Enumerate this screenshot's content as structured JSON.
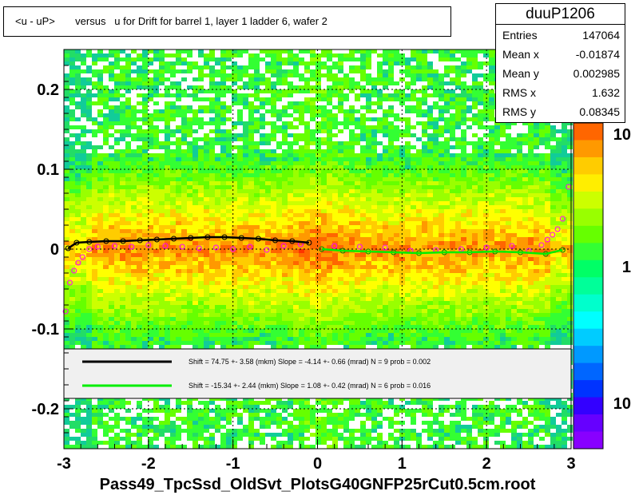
{
  "title": "<u - uP>       versus   u for Drift for barrel 1, layer 1 ladder 6, wafer 2",
  "stats": {
    "name": "duuP1206",
    "rows": [
      {
        "label": "Entries",
        "value": "147064"
      },
      {
        "label": "Mean x",
        "value": "-0.01874"
      },
      {
        "label": "Mean y",
        "value": "0.002985"
      },
      {
        "label": "RMS x",
        "value": "1.632"
      },
      {
        "label": "RMS y",
        "value": "0.08345"
      }
    ]
  },
  "footer": "Pass49_TpcSsd_OldSvt_PlotsG40GNFP25rCut0.5cm.root",
  "legend": [
    {
      "color": "#000000",
      "text": "Shift =    74.75 +- 3.58 (mkm) Slope =    -4.14 +- 0.66 (mrad)  N = 9 prob = 0.002"
    },
    {
      "color": "#00ee00",
      "text": "Shift =   -15.34 +- 2.44 (mkm) Slope =     1.08 +- 0.42 (mrad)  N = 6 prob = 0.016"
    }
  ],
  "chart_data": {
    "type": "heatmap",
    "xlim": [
      -3,
      3
    ],
    "ylim": [
      -0.25,
      0.25
    ],
    "x_ticks": [
      "-3",
      "-2",
      "-1",
      "0",
      "1",
      "2",
      "3"
    ],
    "y_ticks": [
      "-0.2",
      "-0.1",
      "0",
      "0.1",
      "0.2"
    ],
    "colorbar_ticks": [
      "10",
      "1",
      "10"
    ],
    "grid": true,
    "black_fit_points": [
      [
        -2.95,
        0.001
      ],
      [
        -2.85,
        0.008
      ],
      [
        -2.7,
        0.009
      ],
      [
        -2.5,
        0.01
      ],
      [
        -2.3,
        0.01
      ],
      [
        -2.1,
        0.011
      ],
      [
        -1.9,
        0.012
      ],
      [
        -1.7,
        0.013
      ],
      [
        -1.5,
        0.014
      ],
      [
        -1.3,
        0.015
      ],
      [
        -1.1,
        0.015
      ],
      [
        -0.9,
        0.014
      ],
      [
        -0.7,
        0.013
      ],
      [
        -0.5,
        0.011
      ],
      [
        -0.3,
        0.01
      ],
      [
        -0.1,
        0.008
      ]
    ],
    "green_fit_points": [
      [
        0.05,
        0.0
      ],
      [
        0.3,
        -0.002
      ],
      [
        0.6,
        -0.003
      ],
      [
        0.9,
        -0.004
      ],
      [
        1.2,
        -0.005
      ],
      [
        1.5,
        -0.004
      ],
      [
        1.8,
        -0.004
      ],
      [
        2.1,
        -0.003
      ],
      [
        2.4,
        -0.004
      ],
      [
        2.7,
        -0.006
      ],
      [
        2.9,
        -0.001
      ]
    ],
    "magenta_points": [
      [
        -2.98,
        -0.078
      ],
      [
        -2.93,
        -0.042
      ],
      [
        -2.88,
        -0.027
      ],
      [
        -2.83,
        -0.017
      ],
      [
        -2.78,
        -0.01
      ],
      [
        -2.7,
        0.0
      ],
      [
        -2.6,
        0.003
      ],
      [
        -2.4,
        0.004
      ],
      [
        -2.2,
        0.003
      ],
      [
        -2.0,
        0.005
      ],
      [
        -1.8,
        0.004
      ],
      [
        -1.6,
        0.003
      ],
      [
        -1.4,
        0.001
      ],
      [
        -1.2,
        0.002
      ],
      [
        -1.0,
        0.0
      ],
      [
        -0.8,
        0.003
      ],
      [
        -0.6,
        -0.001
      ],
      [
        -0.4,
        0.004
      ],
      [
        -0.2,
        0.006
      ],
      [
        0.2,
        0.004
      ],
      [
        0.5,
        0.003
      ],
      [
        0.8,
        0.002
      ],
      [
        1.1,
        -0.002
      ],
      [
        1.4,
        -0.001
      ],
      [
        1.7,
        0.0
      ],
      [
        2.0,
        0.002
      ],
      [
        2.3,
        0.004
      ],
      [
        2.5,
        -0.002
      ],
      [
        2.65,
        0.005
      ],
      [
        2.72,
        0.012
      ],
      [
        2.78,
        0.018
      ],
      [
        2.84,
        0.025
      ],
      [
        2.9,
        0.038
      ],
      [
        2.97,
        0.078
      ]
    ]
  }
}
